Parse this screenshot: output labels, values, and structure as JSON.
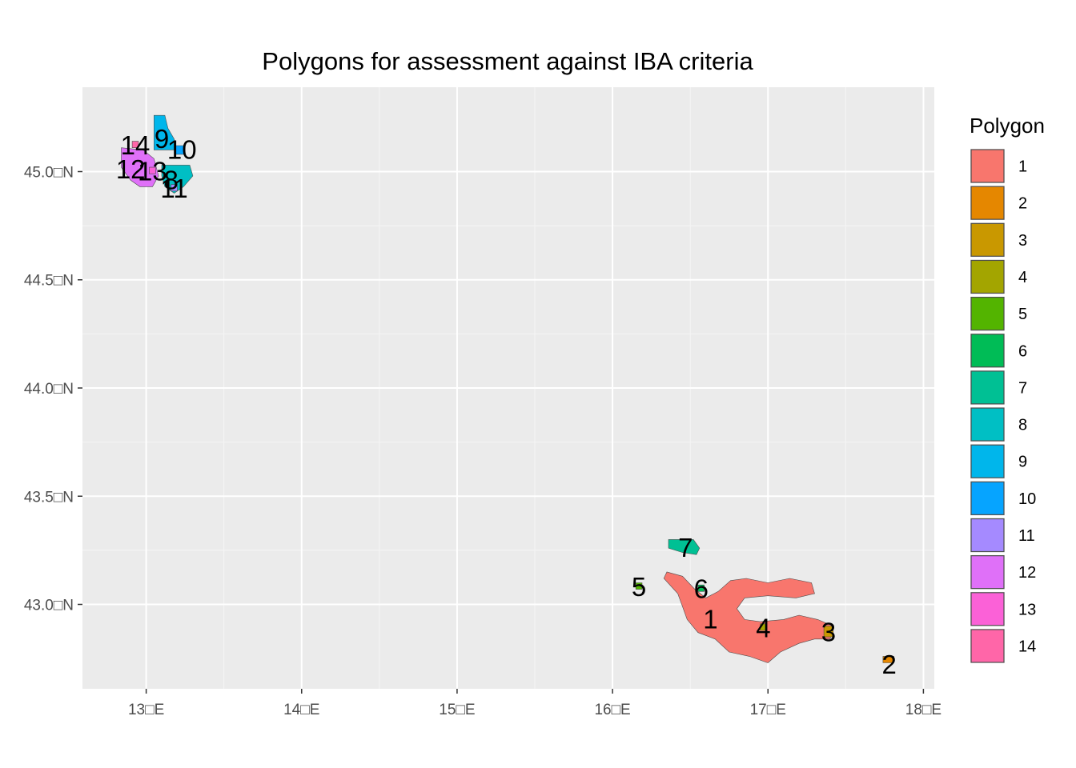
{
  "chart_data": {
    "type": "map",
    "title": "Polygons for assessment against IBA criteria",
    "x_axis": {
      "range": [
        12.59,
        18.07
      ],
      "ticks": [
        13,
        14,
        15,
        16,
        17,
        18
      ],
      "tick_labels": [
        "13□E",
        "14□E",
        "15□E",
        "16□E",
        "17□E",
        "18□E"
      ]
    },
    "y_axis": {
      "range": [
        42.61,
        45.39
      ],
      "ticks": [
        43.0,
        43.5,
        44.0,
        44.5,
        45.0
      ],
      "tick_labels": [
        "43.0□N",
        "43.5□N",
        "44.0□N",
        "44.5□N",
        "45.0□N"
      ]
    },
    "grid": true,
    "legend": {
      "title": "Polygon",
      "position": "right",
      "entries": [
        {
          "label": "1",
          "color": "#F8766D"
        },
        {
          "label": "2",
          "color": "#E58700"
        },
        {
          "label": "3",
          "color": "#C99800"
        },
        {
          "label": "4",
          "color": "#A3A500"
        },
        {
          "label": "5",
          "color": "#53B400"
        },
        {
          "label": "6",
          "color": "#00BC56"
        },
        {
          "label": "7",
          "color": "#00C094"
        },
        {
          "label": "8",
          "color": "#00BFC4"
        },
        {
          "label": "9",
          "color": "#00B6EB"
        },
        {
          "label": "10",
          "color": "#06A4FF"
        },
        {
          "label": "11",
          "color": "#A58AFF"
        },
        {
          "label": "12",
          "color": "#DF70F8"
        },
        {
          "label": "13",
          "color": "#FB61D7"
        },
        {
          "label": "14",
          "color": "#FF66A8"
        }
      ]
    },
    "polygons": [
      {
        "id": "1",
        "color": "#F8766D",
        "label": [
          16.63,
          42.93
        ],
        "shape": [
          [
            16.35,
            43.15
          ],
          [
            16.45,
            43.13
          ],
          [
            16.53,
            43.07
          ],
          [
            16.6,
            43.03
          ],
          [
            16.68,
            43.06
          ],
          [
            16.76,
            43.11
          ],
          [
            16.86,
            43.12
          ],
          [
            17.0,
            43.1
          ],
          [
            17.14,
            43.12
          ],
          [
            17.28,
            43.1
          ],
          [
            17.3,
            43.05
          ],
          [
            17.18,
            43.03
          ],
          [
            17.0,
            43.04
          ],
          [
            16.85,
            43.03
          ],
          [
            16.8,
            42.98
          ],
          [
            16.85,
            42.93
          ],
          [
            16.95,
            42.92
          ],
          [
            17.1,
            42.93
          ],
          [
            17.2,
            42.95
          ],
          [
            17.32,
            42.93
          ],
          [
            17.42,
            42.9
          ],
          [
            17.4,
            42.84
          ],
          [
            17.3,
            42.84
          ],
          [
            17.2,
            42.82
          ],
          [
            17.08,
            42.78
          ],
          [
            17.0,
            42.73
          ],
          [
            16.88,
            42.76
          ],
          [
            16.75,
            42.78
          ],
          [
            16.66,
            42.84
          ],
          [
            16.55,
            42.87
          ],
          [
            16.48,
            42.93
          ],
          [
            16.45,
            42.99
          ],
          [
            16.42,
            43.05
          ],
          [
            16.33,
            43.12
          ]
        ]
      },
      {
        "id": "2",
        "color": "#E58700",
        "label": [
          17.78,
          42.72
        ],
        "shape": [
          [
            17.74,
            42.76
          ],
          [
            17.81,
            42.76
          ],
          [
            17.81,
            42.73
          ],
          [
            17.74,
            42.73
          ]
        ]
      },
      {
        "id": "3",
        "color": "#C99800",
        "label": [
          17.39,
          42.87
        ],
        "shape": [
          [
            17.36,
            42.9
          ],
          [
            17.42,
            42.9
          ],
          [
            17.42,
            42.85
          ],
          [
            17.36,
            42.85
          ]
        ]
      },
      {
        "id": "4",
        "color": "#A3A500",
        "label": [
          16.97,
          42.89
        ],
        "shape": [
          [
            16.95,
            42.91
          ],
          [
            16.99,
            42.91
          ],
          [
            16.99,
            42.88
          ],
          [
            16.95,
            42.88
          ]
        ]
      },
      {
        "id": "5",
        "color": "#53B400",
        "label": [
          16.17,
          43.08
        ],
        "shape": [
          [
            16.15,
            43.1
          ],
          [
            16.19,
            43.1
          ],
          [
            16.19,
            43.07
          ],
          [
            16.15,
            43.07
          ]
        ]
      },
      {
        "id": "6",
        "color": "#00BC56",
        "label": [
          16.57,
          43.07
        ],
        "shape": [
          [
            16.55,
            43.09
          ],
          [
            16.59,
            43.09
          ],
          [
            16.59,
            43.06
          ],
          [
            16.55,
            43.06
          ]
        ]
      },
      {
        "id": "7",
        "color": "#00C094",
        "label": [
          16.47,
          43.26
        ],
        "shape": [
          [
            16.36,
            43.3
          ],
          [
            16.52,
            43.3
          ],
          [
            16.56,
            43.26
          ],
          [
            16.54,
            43.23
          ],
          [
            16.45,
            43.24
          ],
          [
            16.36,
            43.26
          ]
        ]
      },
      {
        "id": "8",
        "color": "#00BFC4",
        "label": [
          13.16,
          44.96
        ],
        "shape": [
          [
            13.1,
            45.03
          ],
          [
            13.28,
            45.03
          ],
          [
            13.3,
            44.98
          ],
          [
            13.24,
            44.93
          ],
          [
            13.18,
            44.9
          ],
          [
            13.12,
            44.93
          ],
          [
            13.1,
            44.98
          ]
        ]
      },
      {
        "id": "9",
        "color": "#00B6EB",
        "label": [
          13.1,
          45.15
        ],
        "shape": [
          [
            13.05,
            45.26
          ],
          [
            13.12,
            45.26
          ],
          [
            13.14,
            45.2
          ],
          [
            13.18,
            45.15
          ],
          [
            13.19,
            45.1
          ],
          [
            13.05,
            45.1
          ]
        ]
      },
      {
        "id": "10",
        "color": "#06A4FF",
        "label": [
          13.23,
          45.1
        ],
        "shape": [
          [
            13.19,
            45.12
          ],
          [
            13.25,
            45.12
          ],
          [
            13.25,
            45.08
          ],
          [
            13.19,
            45.08
          ]
        ]
      },
      {
        "id": "11",
        "color": "#A58AFF",
        "label": [
          13.18,
          44.92
        ],
        "shape": [
          [
            13.16,
            44.94
          ],
          [
            13.2,
            44.94
          ],
          [
            13.2,
            44.91
          ],
          [
            13.16,
            44.91
          ]
        ]
      },
      {
        "id": "12",
        "color": "#DF70F8",
        "label": [
          12.9,
          45.01
        ],
        "shape": [
          [
            12.84,
            45.11
          ],
          [
            12.98,
            45.1
          ],
          [
            13.05,
            45.06
          ],
          [
            13.08,
            44.98
          ],
          [
            13.04,
            44.93
          ],
          [
            12.96,
            44.93
          ],
          [
            12.9,
            44.96
          ],
          [
            12.84,
            45.02
          ]
        ]
      },
      {
        "id": "13",
        "color": "#FB61D7",
        "label": [
          13.04,
          45.0
        ],
        "shape": [
          [
            13.02,
            45.02
          ],
          [
            13.06,
            45.02
          ],
          [
            13.06,
            44.99
          ],
          [
            13.02,
            44.99
          ]
        ]
      },
      {
        "id": "14",
        "color": "#FF66A8",
        "label": [
          12.93,
          45.12
        ],
        "shape": [
          [
            12.91,
            45.14
          ],
          [
            12.95,
            45.14
          ],
          [
            12.95,
            45.11
          ],
          [
            12.91,
            45.11
          ]
        ]
      }
    ]
  }
}
